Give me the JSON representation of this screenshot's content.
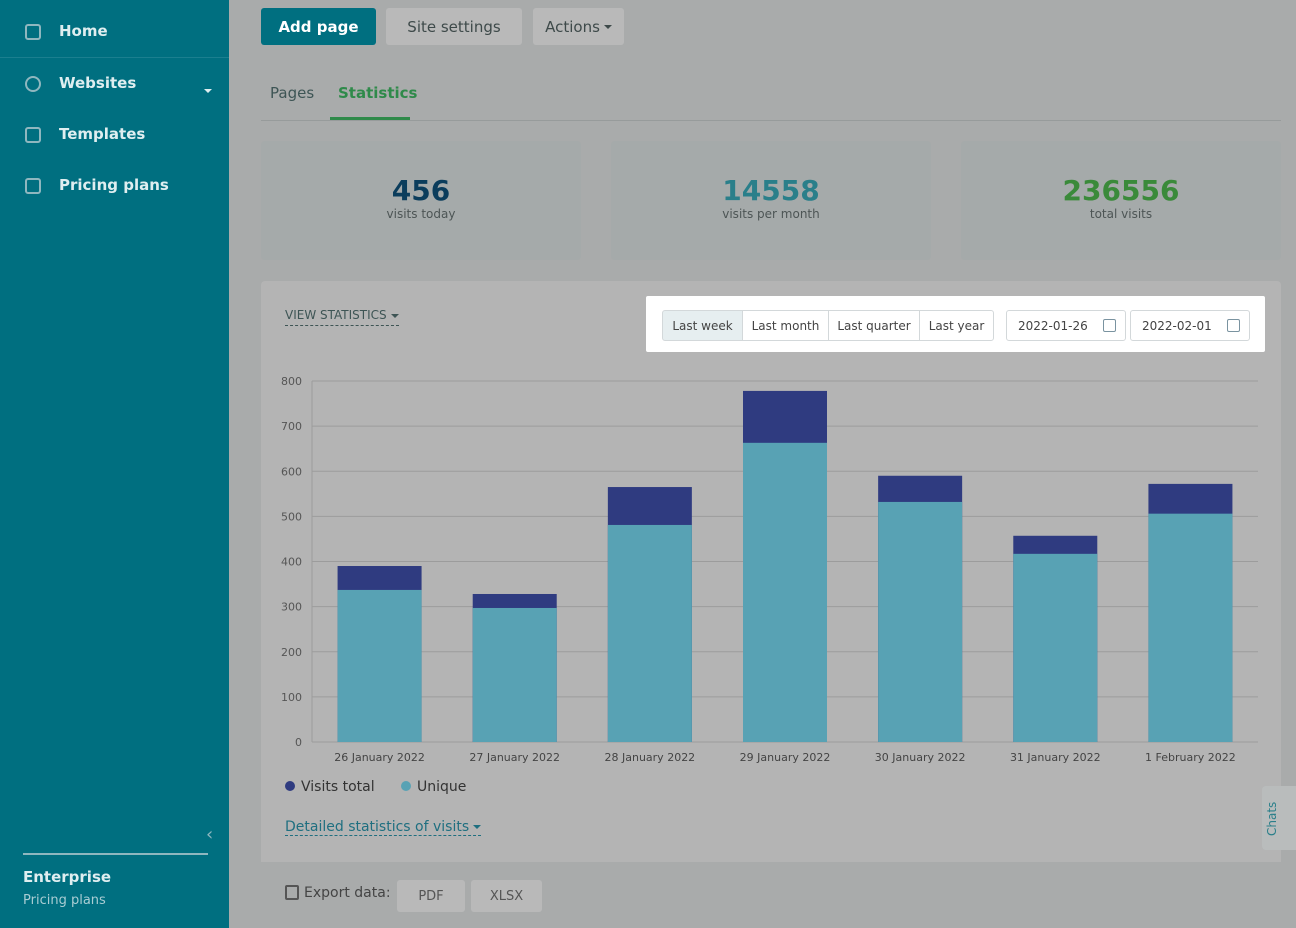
{
  "sidebar": {
    "items": [
      "Home",
      "Websites",
      "Templates",
      "Pricing plans"
    ],
    "plan": {
      "name": "Enterprise",
      "link": "Pricing plans"
    }
  },
  "toolbar": {
    "buttons": [
      "Add page",
      "Site settings",
      "Actions"
    ]
  },
  "tabs": [
    "Pages",
    "Statistics"
  ],
  "stats": [
    {
      "value": 456,
      "label": "visits today"
    },
    {
      "value": 14558,
      "label": "visits per month"
    },
    {
      "value": 236556,
      "label": "total visits"
    }
  ],
  "panel": {
    "view": "VIEW STATISTICS",
    "ranges": [
      "Last week",
      "Last month",
      "Last quarter",
      "Last year"
    ],
    "dates": [
      "2022-01-26",
      "2022-02-01"
    ],
    "details": "Detailed statistics of visits",
    "export": {
      "label": "Export data:",
      "formats": [
        "PDF",
        "XLSX"
      ]
    }
  },
  "chats": "Chats",
  "chart_data": {
    "type": "bar",
    "categories": [
      "26 January 2022",
      "27 January 2022",
      "28 January 2022",
      "29 January 2022",
      "30 January 2022",
      "31 January 2022",
      "1 February 2022"
    ],
    "series": [
      {
        "name": "Visits total",
        "color": "#2f3b80",
        "values": [
          390,
          328,
          565,
          778,
          590,
          457,
          572
        ]
      },
      {
        "name": "Unique",
        "color": "#58a2b4",
        "values": [
          337,
          297,
          481,
          663,
          532,
          417,
          506
        ]
      }
    ],
    "ylim": [
      0,
      800
    ],
    "yticks": [
      0,
      100,
      200,
      300,
      400,
      500,
      600,
      700,
      800
    ],
    "grid": true,
    "legend": "bottom-left"
  }
}
